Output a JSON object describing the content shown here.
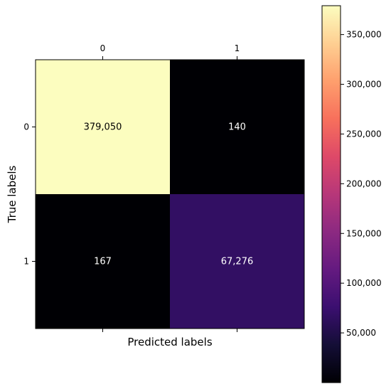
{
  "chart_data": {
    "type": "heatmap",
    "title": "",
    "xlabel": "Predicted labels",
    "ylabel": "True labels",
    "x_categories": [
      "0",
      "1"
    ],
    "y_categories": [
      "0",
      "1"
    ],
    "values": [
      [
        379050,
        140
      ],
      [
        167,
        67276
      ]
    ],
    "cell_labels": [
      [
        "379,050",
        "140"
      ],
      [
        "167",
        "67,276"
      ]
    ],
    "x_ticks_position": "top",
    "colormap": "magma",
    "colorbar": {
      "range": [
        0,
        379050
      ],
      "ticks": [
        50000,
        100000,
        150000,
        200000,
        250000,
        300000,
        350000
      ],
      "tick_labels": [
        "50,000",
        "100,000",
        "150,000",
        "200,000",
        "250,000",
        "300,000",
        "350,000"
      ],
      "placement": "right"
    },
    "grid": false
  }
}
